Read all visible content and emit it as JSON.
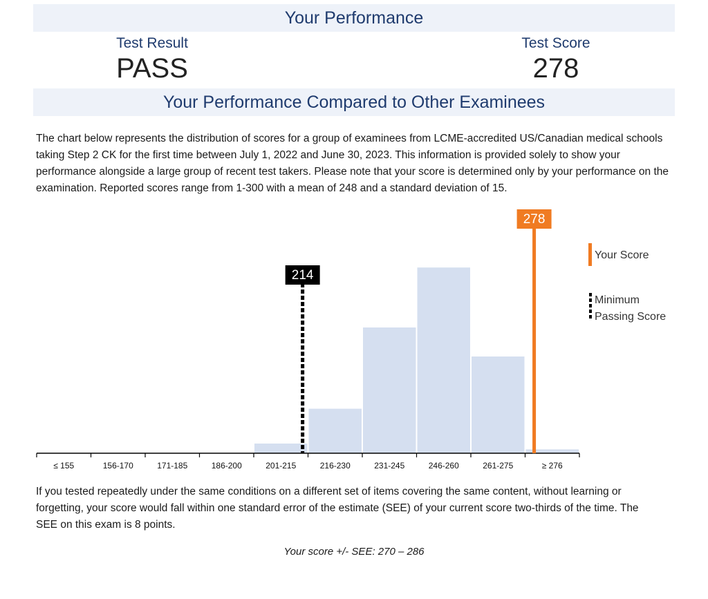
{
  "header": {
    "title": "Your Performance",
    "result_label": "Test Result",
    "result_value": "PASS",
    "score_label": "Test Score",
    "score_value": "278"
  },
  "comparison": {
    "title": "Your Performance Compared to Other Examinees",
    "description": "The chart below represents the distribution of scores for a group of examinees from LCME-accredited US/Canadian medical schools taking Step 2 CK for the first time between July 1, 2022 and June 30, 2023. This information is provided solely to show your performance alongside a large group of recent test takers. Please note that your score is determined only by your performance on the examination. Reported scores range from 1-300 with a mean of 248 and a standard deviation of 15."
  },
  "chart_data": {
    "type": "bar",
    "categories": [
      "≤ 155",
      "156-170",
      "171-185",
      "186-200",
      "201-215",
      "216-230",
      "231-245",
      "246-260",
      "261-275",
      "≥ 276"
    ],
    "values": [
      0,
      0,
      0,
      0,
      5,
      23,
      65,
      96,
      50,
      2
    ],
    "ylim": [
      0,
      100
    ],
    "grid": false,
    "markers": {
      "your_score": {
        "value": 278,
        "label": "278",
        "legend": "Your Score",
        "color": "#f07b22"
      },
      "minimum_passing": {
        "value": 214,
        "label": "214",
        "legend_lines": [
          "Minimum",
          "Passing Score"
        ],
        "color": "#000000"
      }
    },
    "bar_color": "#d5dff0",
    "legend_position": "right"
  },
  "footer": {
    "explanation": "If you tested repeatedly under the same conditions on a different set of items covering the same content, without learning or forgetting, your score would fall within one standard error of the estimate (SEE) of your current score two-thirds of the time. The SEE on this exam is 8 points.",
    "see_range": "Your score +/- SEE:  270 – 286"
  }
}
